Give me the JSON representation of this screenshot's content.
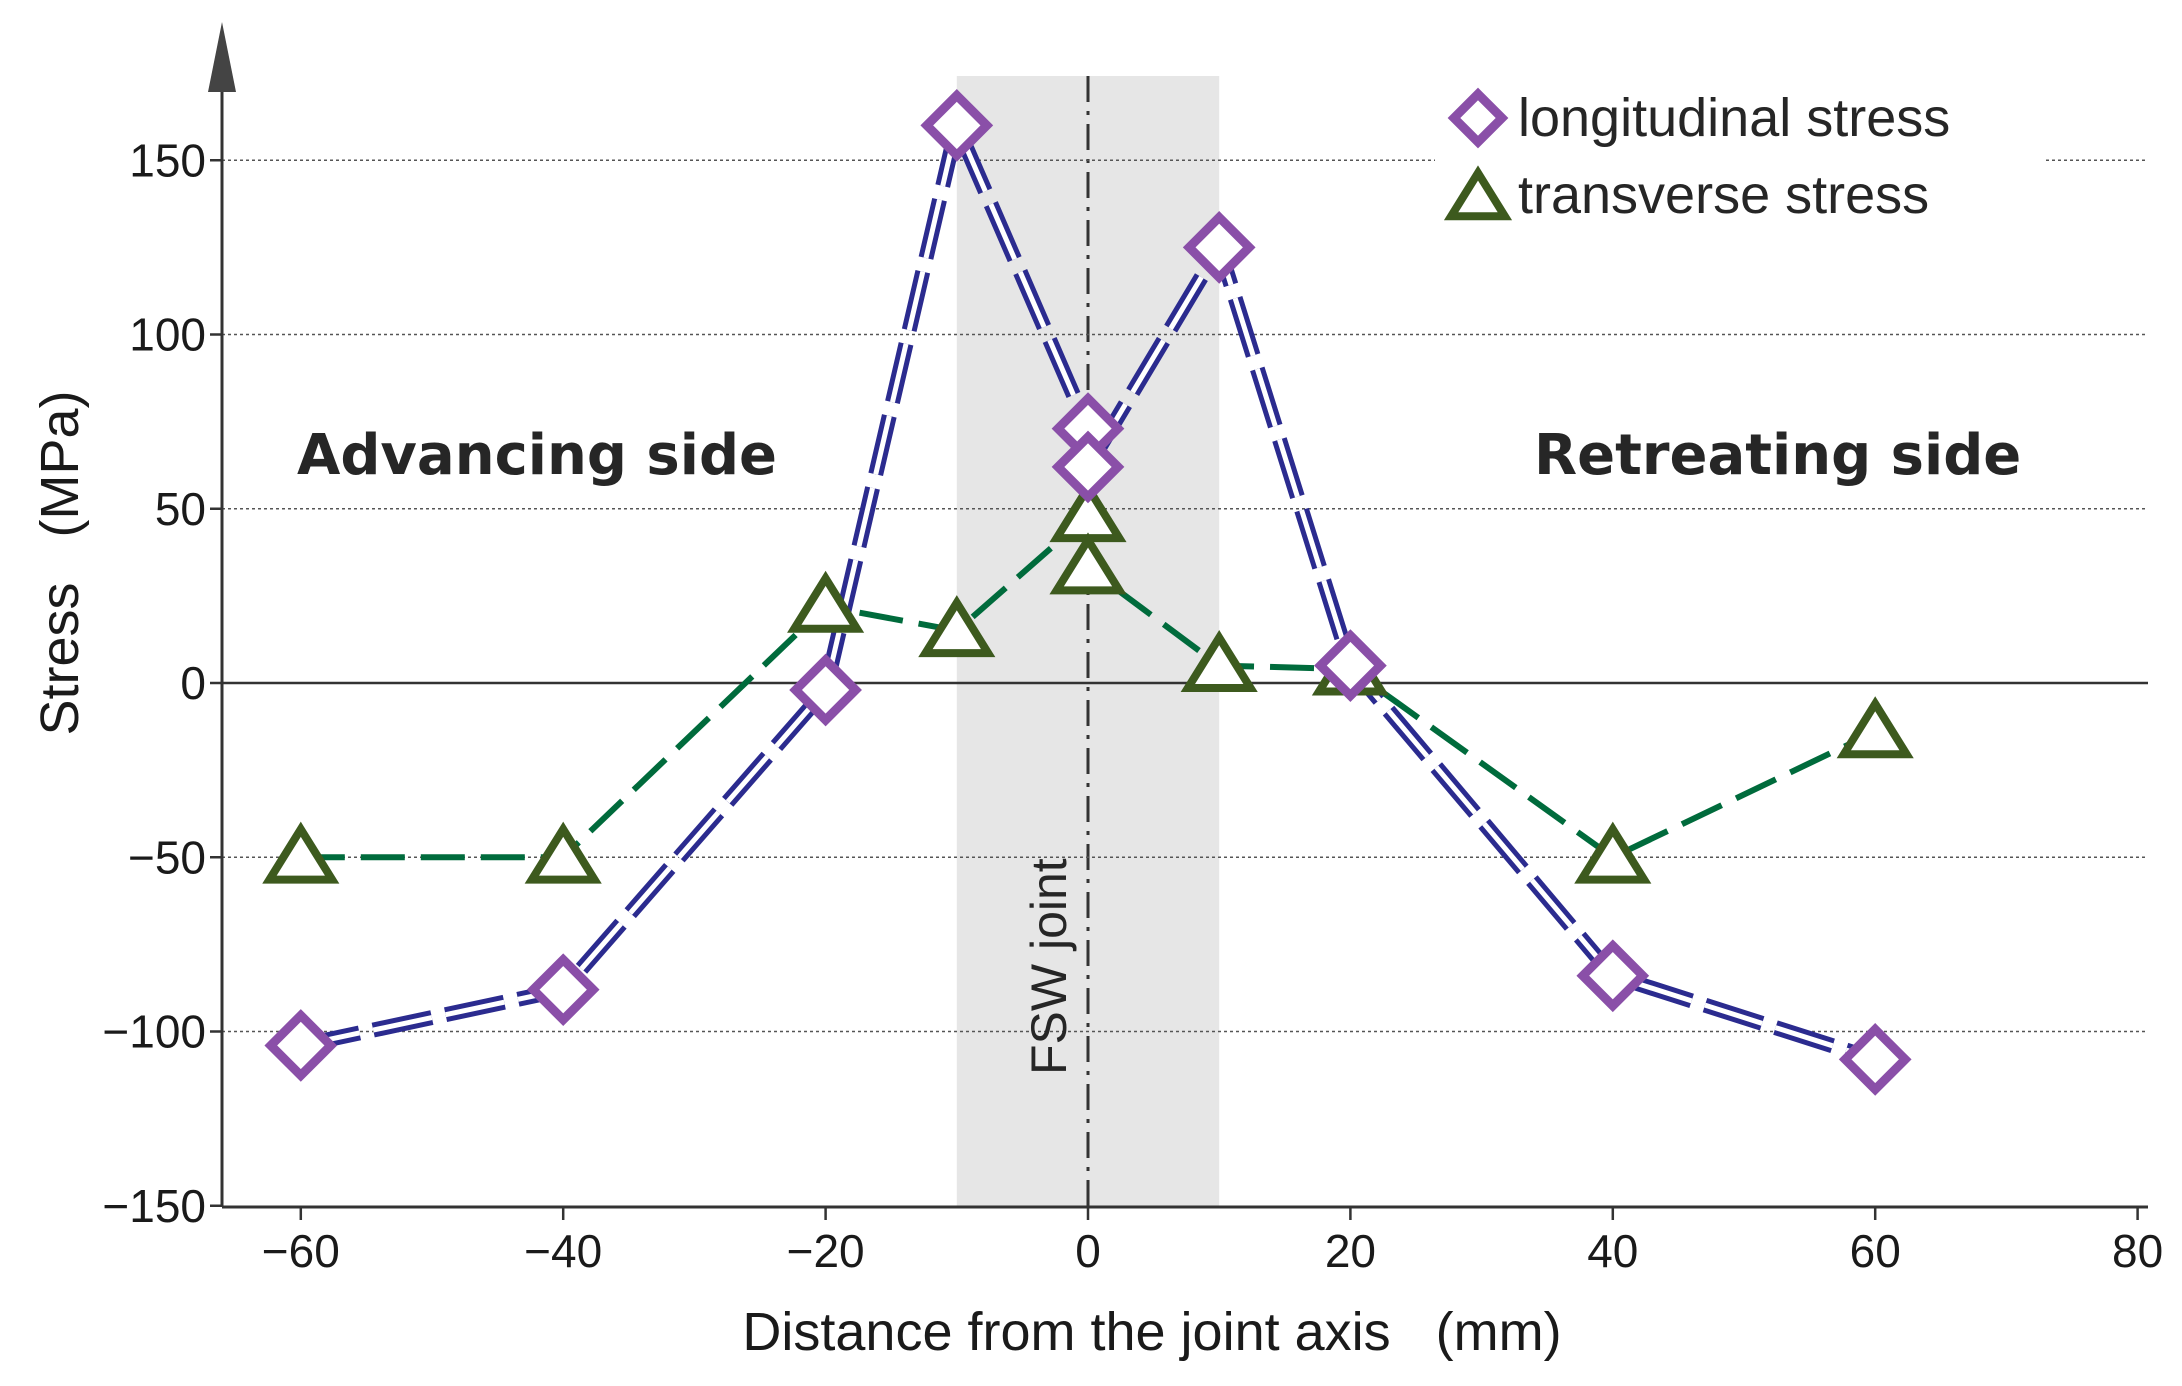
{
  "chart_data": {
    "type": "line",
    "xlabel": "Distance from the joint axis   (mm)",
    "ylabel": "Stress   (MPa)",
    "xlim": [
      -70,
      80
    ],
    "ylim": [
      -150,
      175
    ],
    "xticks": [
      -60,
      -40,
      -20,
      0,
      20,
      40,
      60,
      80
    ],
    "yticks": [
      -150,
      -100,
      -50,
      0,
      50,
      100,
      150
    ],
    "xtick_labels": [
      "−60",
      "−40",
      "−20",
      "0",
      "20",
      "40",
      "60",
      "80"
    ],
    "ytick_labels": [
      "−150",
      "−100",
      "−50",
      "0",
      "50",
      "100",
      "150"
    ],
    "grid": "horizontal dotted",
    "legend_position": "top-right",
    "annotations": {
      "advancing": "Advancing side",
      "retreating": "Retreating side",
      "joint": "FSW joint"
    },
    "joint_zone": [
      -10,
      10
    ],
    "series": [
      {
        "name": "longitudinal stress",
        "marker": "diamond",
        "color": "#2b2b8f",
        "marker_color": "#8a4fa8",
        "x": [
          -60,
          -40,
          -20,
          -10,
          0,
          0,
          10,
          20,
          40,
          60
        ],
        "y": [
          -104,
          -88,
          -2,
          160,
          73,
          62,
          125,
          5,
          -84,
          -108
        ]
      },
      {
        "name": "transverse stress",
        "marker": "triangle",
        "color": "#006b3c",
        "marker_color": "#3d5a1e",
        "x": [
          -60,
          -40,
          -20,
          -10,
          0,
          0,
          10,
          20,
          40,
          60
        ],
        "y": [
          -50,
          -50,
          22,
          15,
          48,
          33,
          5,
          4,
          -50,
          -14
        ]
      }
    ]
  }
}
